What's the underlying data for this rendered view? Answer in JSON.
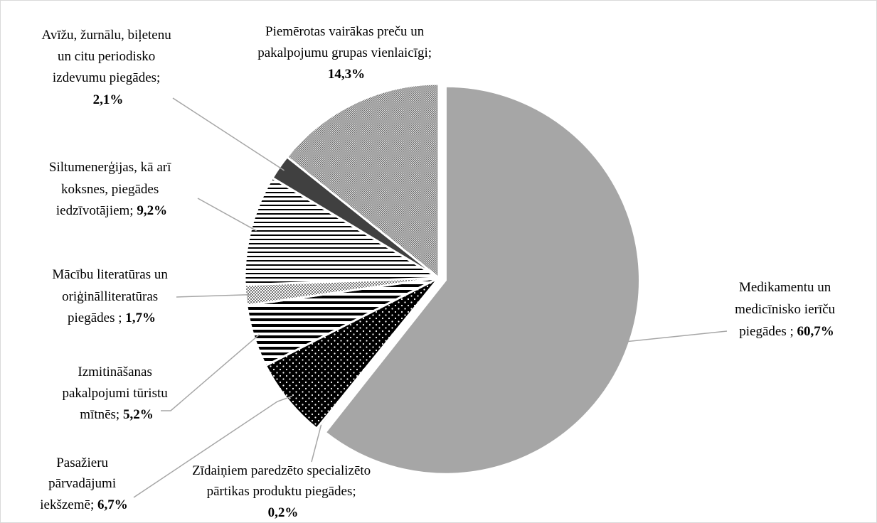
{
  "chart_data": {
    "type": "pie",
    "title": "",
    "slices": [
      {
        "id": "medikamenti",
        "label_lines": [
          "Medikamentu un",
          "medicīnisko ierīču"
        ],
        "label_last": "piegādes ; ",
        "percent_text": "60,7%",
        "value": 60.7,
        "color": "#a6a6a6",
        "pattern": "solid-gray"
      },
      {
        "id": "zidainiem",
        "label_lines": [
          "Zīdaiņiem paredzēto specializēto",
          "pārtikas produktu piegādes;"
        ],
        "label_last": "",
        "percent_text": "0,2%",
        "value": 0.2,
        "color": "#bfbfbf",
        "pattern": "light-gray"
      },
      {
        "id": "pasazieru",
        "label_lines": [
          "Pasažieru",
          "pārvadājumi"
        ],
        "label_last": "iekšzemē; ",
        "percent_text": "6,7%",
        "value": 6.7,
        "color": "#000000",
        "pattern": "black-dots"
      },
      {
        "id": "izmitinasana",
        "label_lines": [
          "Izmitināšanas",
          "pakalpojumi tūristu"
        ],
        "label_last": "mītnēs; ",
        "percent_text": "5,2%",
        "value": 5.2,
        "color": "#000000",
        "pattern": "thick-horizontal-stripes"
      },
      {
        "id": "macibu",
        "label_lines": [
          "Mācību literatūras un",
          "oriģinālliteratūras"
        ],
        "label_last": "piegādes ; ",
        "percent_text": "1,7%",
        "value": 1.7,
        "color": "#7f7f7f",
        "pattern": "checker"
      },
      {
        "id": "siltumenergija",
        "label_lines": [
          "Siltumenerģijas, kā arī",
          "koksnes, piegādes"
        ],
        "label_last": "iedzīvotājiem; ",
        "percent_text": "9,2%",
        "value": 9.2,
        "color": "#000000",
        "pattern": "thin-horizontal-stripes"
      },
      {
        "id": "avizu",
        "label_lines": [
          "Avīžu, žurnālu, biļetenu",
          "un citu periodisko",
          "izdevumu piegādes;"
        ],
        "label_last": "",
        "percent_text": "2,1%",
        "value": 2.1,
        "color": "#404040",
        "pattern": "solid-dark"
      },
      {
        "id": "piemerotas",
        "label_lines": [
          "Piemērotas vairākas preču un",
          "pakalpojumu grupas vienlaicīgi;"
        ],
        "label_last": "",
        "percent_text": "14,3%",
        "value": 14.3,
        "color": "#9a9a9a",
        "pattern": "fine-check"
      }
    ]
  }
}
